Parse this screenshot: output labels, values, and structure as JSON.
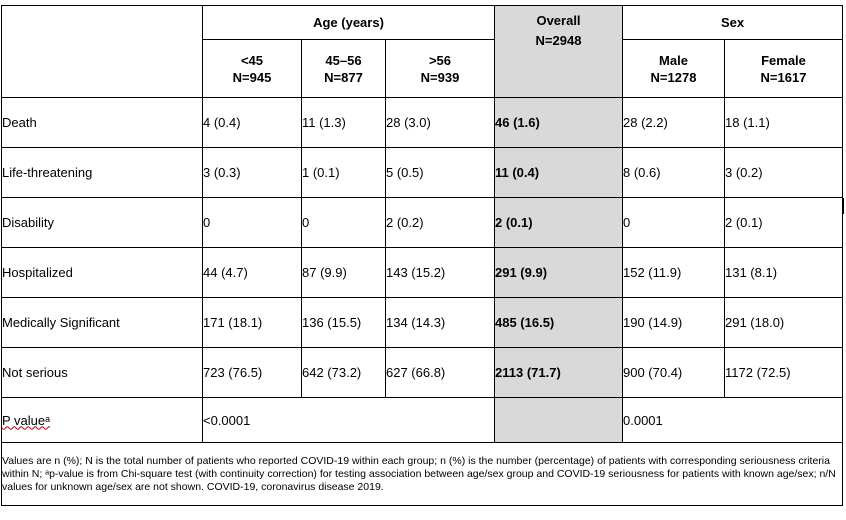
{
  "header": {
    "age_group": "Age (years)",
    "overall_label": "Overall",
    "overall_n": "N=2948",
    "sex_group": "Sex",
    "columns": [
      {
        "label": "<45",
        "n": "N=945"
      },
      {
        "label": "45–56",
        "n": "N=877"
      },
      {
        "label": ">56",
        "n": "N=939"
      },
      {
        "label": "Male",
        "n": "N=1278"
      },
      {
        "label": "Female",
        "n": "N=1617"
      }
    ]
  },
  "rows": [
    {
      "label": "Death",
      "lt45": "4 (0.4)",
      "a45_56": "11 (1.3)",
      "gt56": "28 (3.0)",
      "overall": "46 (1.6)",
      "male": "28 (2.2)",
      "female": "18 (1.1)"
    },
    {
      "label": "Life-threatening",
      "lt45": "3 (0.3)",
      "a45_56": "1 (0.1)",
      "gt56": "5 (0.5)",
      "overall": "11 (0.4)",
      "male": "8 (0.6)",
      "female": "3 (0.2)"
    },
    {
      "label": "Disability",
      "lt45": "0",
      "a45_56": "0",
      "gt56": "2 (0.2)",
      "overall": "2 (0.1)",
      "male": "0",
      "female": "2 (0.1)"
    },
    {
      "label": "Hospitalized",
      "lt45": "44 (4.7)",
      "a45_56": "87 (9.9)",
      "gt56": "143 (15.2)",
      "overall": "291 (9.9)",
      "male": "152 (11.9)",
      "female": "131 (8.1)"
    },
    {
      "label": "Medically Significant",
      "lt45": "171 (18.1)",
      "a45_56": "136 (15.5)",
      "gt56": "134 (14.3)",
      "overall": "485 (16.5)",
      "male": "190 (14.9)",
      "female": "291 (18.0)"
    },
    {
      "label": "Not serious",
      "lt45": "723 (76.5)",
      "a45_56": "642 (73.2)",
      "gt56": "627 (66.8)",
      "overall": "2113 (71.7)",
      "male": "900 (70.4)",
      "female": "1172 (72.5)"
    }
  ],
  "pvalue": {
    "label": "P valueᵃ",
    "age": "<0.0001",
    "sex": "0.0001"
  },
  "footnote": "Values are n (%); N is the total number of patients who reported COVID-19 within each group; n (%) is the number (percentage) of patients with corresponding seriousness criteria within N; ᵃp-value is from Chi-square test (with continuity correction) for testing association between age/sex group and COVID-19 seriousness for patients with known age/sex; n/N values for unknown age/sex are not shown. COVID-19, coronavirus disease 2019."
}
